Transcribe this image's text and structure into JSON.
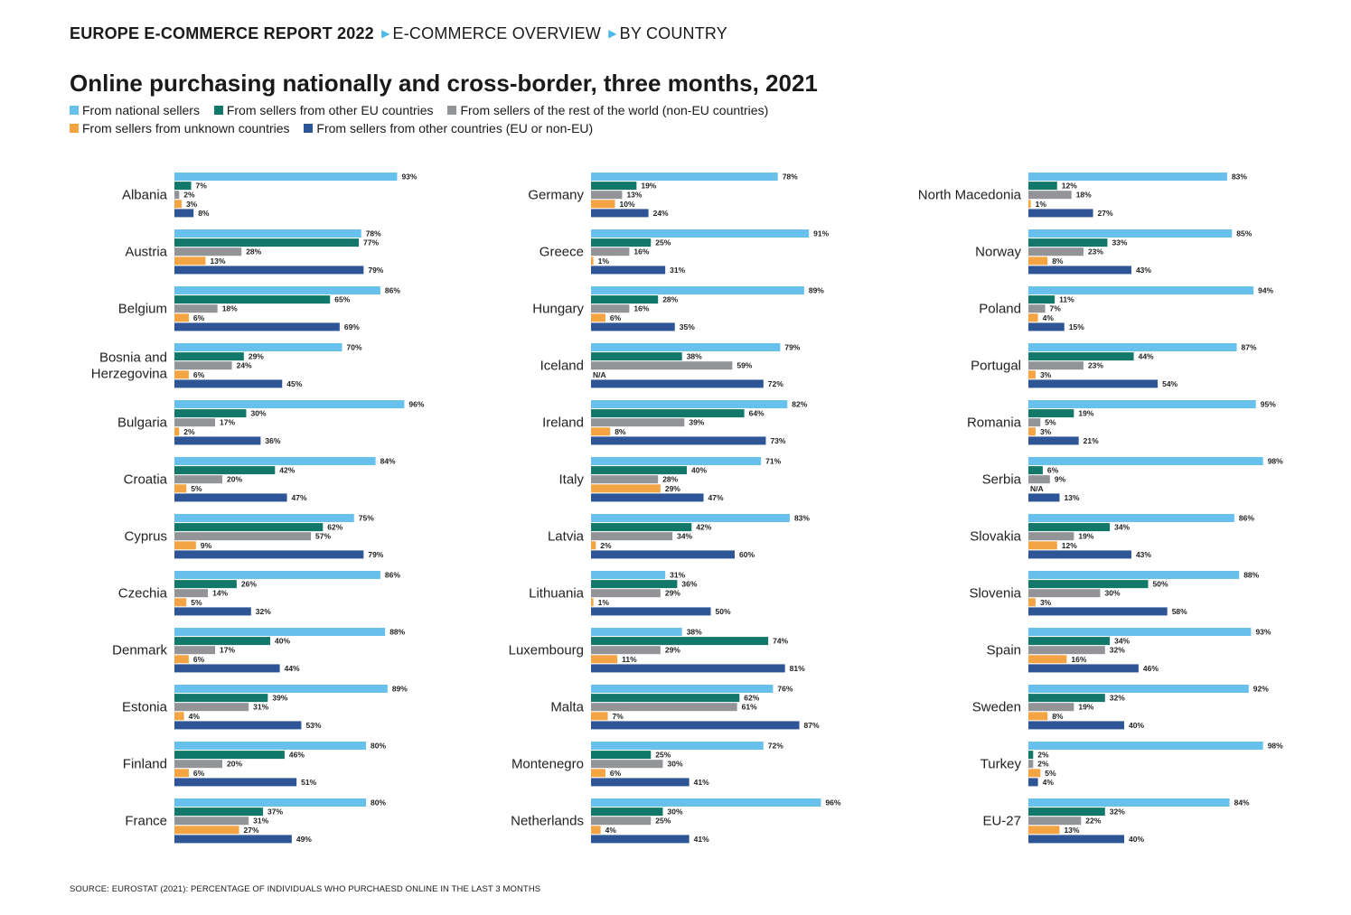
{
  "header": {
    "report": "EUROPE E-COMMERCE REPORT 2022",
    "crumb1": "E-COMMERCE OVERVIEW",
    "crumb2": "BY COUNTRY"
  },
  "legend": [
    {
      "label": "From national sellers",
      "color": "#67c1ec"
    },
    {
      "label": "From sellers from other EU countries",
      "color": "#11786a"
    },
    {
      "label": "From sellers of the rest of the world (non-EU countries)",
      "color": "#929497"
    },
    {
      "label": "From sellers from unknown countries",
      "color": "#f5a443"
    },
    {
      "label": "From sellers from other countries (EU or non-EU)",
      "color": "#2e5596"
    }
  ],
  "source": "SOURCE: EUROSTAT (2021): PERCENTAGE OF INDIVIDUALS WHO PURCHAESD ONLINE IN THE LAST 3 MONTHS",
  "chart_data": {
    "type": "bar",
    "orientation": "horizontal",
    "title": "Online purchasing nationally and cross-border, three months, 2021",
    "unit": "%",
    "xlim": [
      0,
      100
    ],
    "series_names": [
      "From national sellers",
      "From sellers from other EU countries",
      "From sellers of the rest of the world (non-EU countries)",
      "From sellers from unknown countries",
      "From sellers from other countries (EU or non-EU)"
    ],
    "na_label": "N/A",
    "columns": [
      [
        {
          "country": "Albania",
          "values": [
            93,
            7,
            2,
            3,
            8
          ]
        },
        {
          "country": "Austria",
          "values": [
            78,
            77,
            28,
            13,
            79
          ]
        },
        {
          "country": "Belgium",
          "values": [
            86,
            65,
            18,
            6,
            69
          ]
        },
        {
          "country": "Bosnia and Herzegovina",
          "values": [
            70,
            29,
            24,
            6,
            45
          ]
        },
        {
          "country": "Bulgaria",
          "values": [
            96,
            30,
            17,
            2,
            36
          ]
        },
        {
          "country": "Croatia",
          "values": [
            84,
            42,
            20,
            5,
            47
          ]
        },
        {
          "country": "Cyprus",
          "values": [
            75,
            62,
            57,
            9,
            79
          ]
        },
        {
          "country": "Czechia",
          "values": [
            86,
            26,
            14,
            5,
            32
          ]
        },
        {
          "country": "Denmark",
          "values": [
            88,
            40,
            17,
            6,
            44
          ]
        },
        {
          "country": "Estonia",
          "values": [
            89,
            39,
            31,
            4,
            53
          ]
        },
        {
          "country": "Finland",
          "values": [
            80,
            46,
            20,
            6,
            51
          ]
        },
        {
          "country": "France",
          "values": [
            80,
            37,
            31,
            27,
            49
          ]
        }
      ],
      [
        {
          "country": "Germany",
          "values": [
            78,
            19,
            13,
            10,
            24
          ]
        },
        {
          "country": "Greece",
          "values": [
            91,
            25,
            16,
            1,
            31
          ]
        },
        {
          "country": "Hungary",
          "values": [
            89,
            28,
            16,
            6,
            35
          ]
        },
        {
          "country": "Iceland",
          "values": [
            79,
            38,
            59,
            null,
            72
          ]
        },
        {
          "country": "Ireland",
          "values": [
            82,
            64,
            39,
            8,
            73
          ]
        },
        {
          "country": "Italy",
          "values": [
            71,
            40,
            28,
            29,
            47
          ]
        },
        {
          "country": "Latvia",
          "values": [
            83,
            42,
            34,
            2,
            60
          ]
        },
        {
          "country": "Lithuania",
          "values": [
            31,
            36,
            29,
            1,
            50
          ]
        },
        {
          "country": "Luxembourg",
          "values": [
            38,
            74,
            29,
            11,
            81
          ]
        },
        {
          "country": "Malta",
          "values": [
            76,
            62,
            61,
            7,
            87
          ]
        },
        {
          "country": "Montenegro",
          "values": [
            72,
            25,
            30,
            6,
            41
          ]
        },
        {
          "country": "Netherlands",
          "values": [
            96,
            30,
            25,
            4,
            41
          ]
        }
      ],
      [
        {
          "country": "North Macedonia",
          "values": [
            83,
            12,
            18,
            1,
            27
          ]
        },
        {
          "country": "Norway",
          "values": [
            85,
            33,
            23,
            8,
            43
          ]
        },
        {
          "country": "Poland",
          "values": [
            94,
            11,
            7,
            4,
            15
          ]
        },
        {
          "country": "Portugal",
          "values": [
            87,
            44,
            23,
            3,
            54
          ]
        },
        {
          "country": "Romania",
          "values": [
            95,
            19,
            5,
            3,
            21
          ]
        },
        {
          "country": "Serbia",
          "values": [
            98,
            6,
            9,
            null,
            13
          ]
        },
        {
          "country": "Slovakia",
          "values": [
            86,
            34,
            19,
            12,
            43
          ]
        },
        {
          "country": "Slovenia",
          "values": [
            88,
            50,
            30,
            3,
            58
          ]
        },
        {
          "country": "Spain",
          "values": [
            93,
            34,
            32,
            16,
            46
          ]
        },
        {
          "country": "Sweden",
          "values": [
            92,
            32,
            19,
            8,
            40
          ]
        },
        {
          "country": "Turkey",
          "values": [
            98,
            2,
            2,
            5,
            4
          ]
        },
        {
          "country": "EU-27",
          "values": [
            84,
            32,
            22,
            13,
            40
          ]
        }
      ]
    ]
  }
}
